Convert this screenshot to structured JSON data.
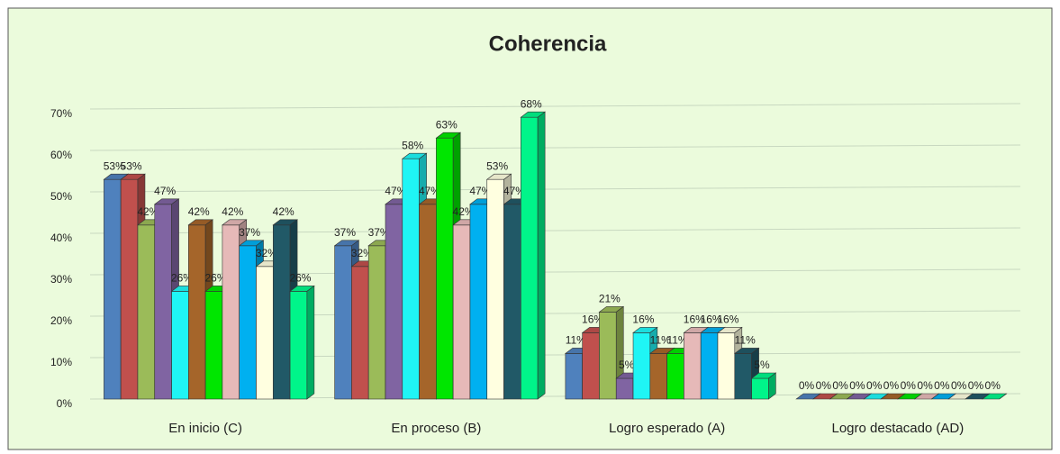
{
  "chart_data": {
    "type": "bar3d",
    "title": "Coherencia",
    "categories": [
      "En inicio (C)",
      "En proceso (B)",
      "Logro esperado (A)",
      "Logro destacado (AD)"
    ],
    "series": [
      {
        "color": "#4f81bd",
        "values": [
          53,
          37,
          11,
          0
        ],
        "value_labels": [
          "53%",
          "37%",
          "11%",
          "0%"
        ]
      },
      {
        "color": "#c0504d",
        "values": [
          53,
          32,
          16,
          0
        ],
        "value_labels": [
          "53%",
          "32%",
          "16%",
          "0%"
        ]
      },
      {
        "color": "#9bbb59",
        "values": [
          42,
          37,
          21,
          0
        ],
        "value_labels": [
          "42%",
          "37%",
          "21%",
          "0%"
        ]
      },
      {
        "color": "#8064a2",
        "values": [
          47,
          47,
          5,
          0
        ],
        "value_labels": [
          "47%",
          "47%",
          "5%",
          "0%"
        ]
      },
      {
        "color": "#1ff5f5",
        "values": [
          26,
          58,
          16,
          0
        ],
        "value_labels": [
          "26%",
          "58%",
          "16%",
          "0%"
        ]
      },
      {
        "color": "#a5652a",
        "values": [
          42,
          47,
          11,
          0
        ],
        "value_labels": [
          "42%",
          "47%",
          "11%",
          "0%"
        ]
      },
      {
        "color": "#00e600",
        "values": [
          26,
          63,
          11,
          0
        ],
        "value_labels": [
          "26%",
          "63%",
          "11%",
          "0%"
        ]
      },
      {
        "color": "#e6b9b8",
        "values": [
          42,
          42,
          16,
          0
        ],
        "value_labels": [
          "42%",
          "42%",
          "16%",
          "0%"
        ]
      },
      {
        "color": "#00b0f0",
        "values": [
          37,
          47,
          16,
          0
        ],
        "value_labels": [
          "37%",
          "47%",
          "16%",
          "0%"
        ]
      },
      {
        "color": "#ffffe0",
        "values": [
          32,
          53,
          16,
          0
        ],
        "value_labels": [
          "32%",
          "53%",
          "16%",
          "0%"
        ]
      },
      {
        "color": "#215967",
        "values": [
          42,
          47,
          11,
          0
        ],
        "value_labels": [
          "42%",
          "47%",
          "11%",
          "0%"
        ]
      },
      {
        "color": "#00f58a",
        "values": [
          26,
          68,
          5,
          0
        ],
        "value_labels": [
          "26%",
          "68%",
          "5%",
          "0%"
        ]
      }
    ],
    "ylim": [
      0,
      70
    ],
    "yticks": [
      {
        "value": 0,
        "label": "0%"
      },
      {
        "value": 10,
        "label": "10%"
      },
      {
        "value": 20,
        "label": "20%"
      },
      {
        "value": 30,
        "label": "30%"
      },
      {
        "value": 40,
        "label": "40%"
      },
      {
        "value": 50,
        "label": "50%"
      },
      {
        "value": 60,
        "label": "60%"
      },
      {
        "value": 70,
        "label": "70%"
      }
    ],
    "grid": true
  }
}
